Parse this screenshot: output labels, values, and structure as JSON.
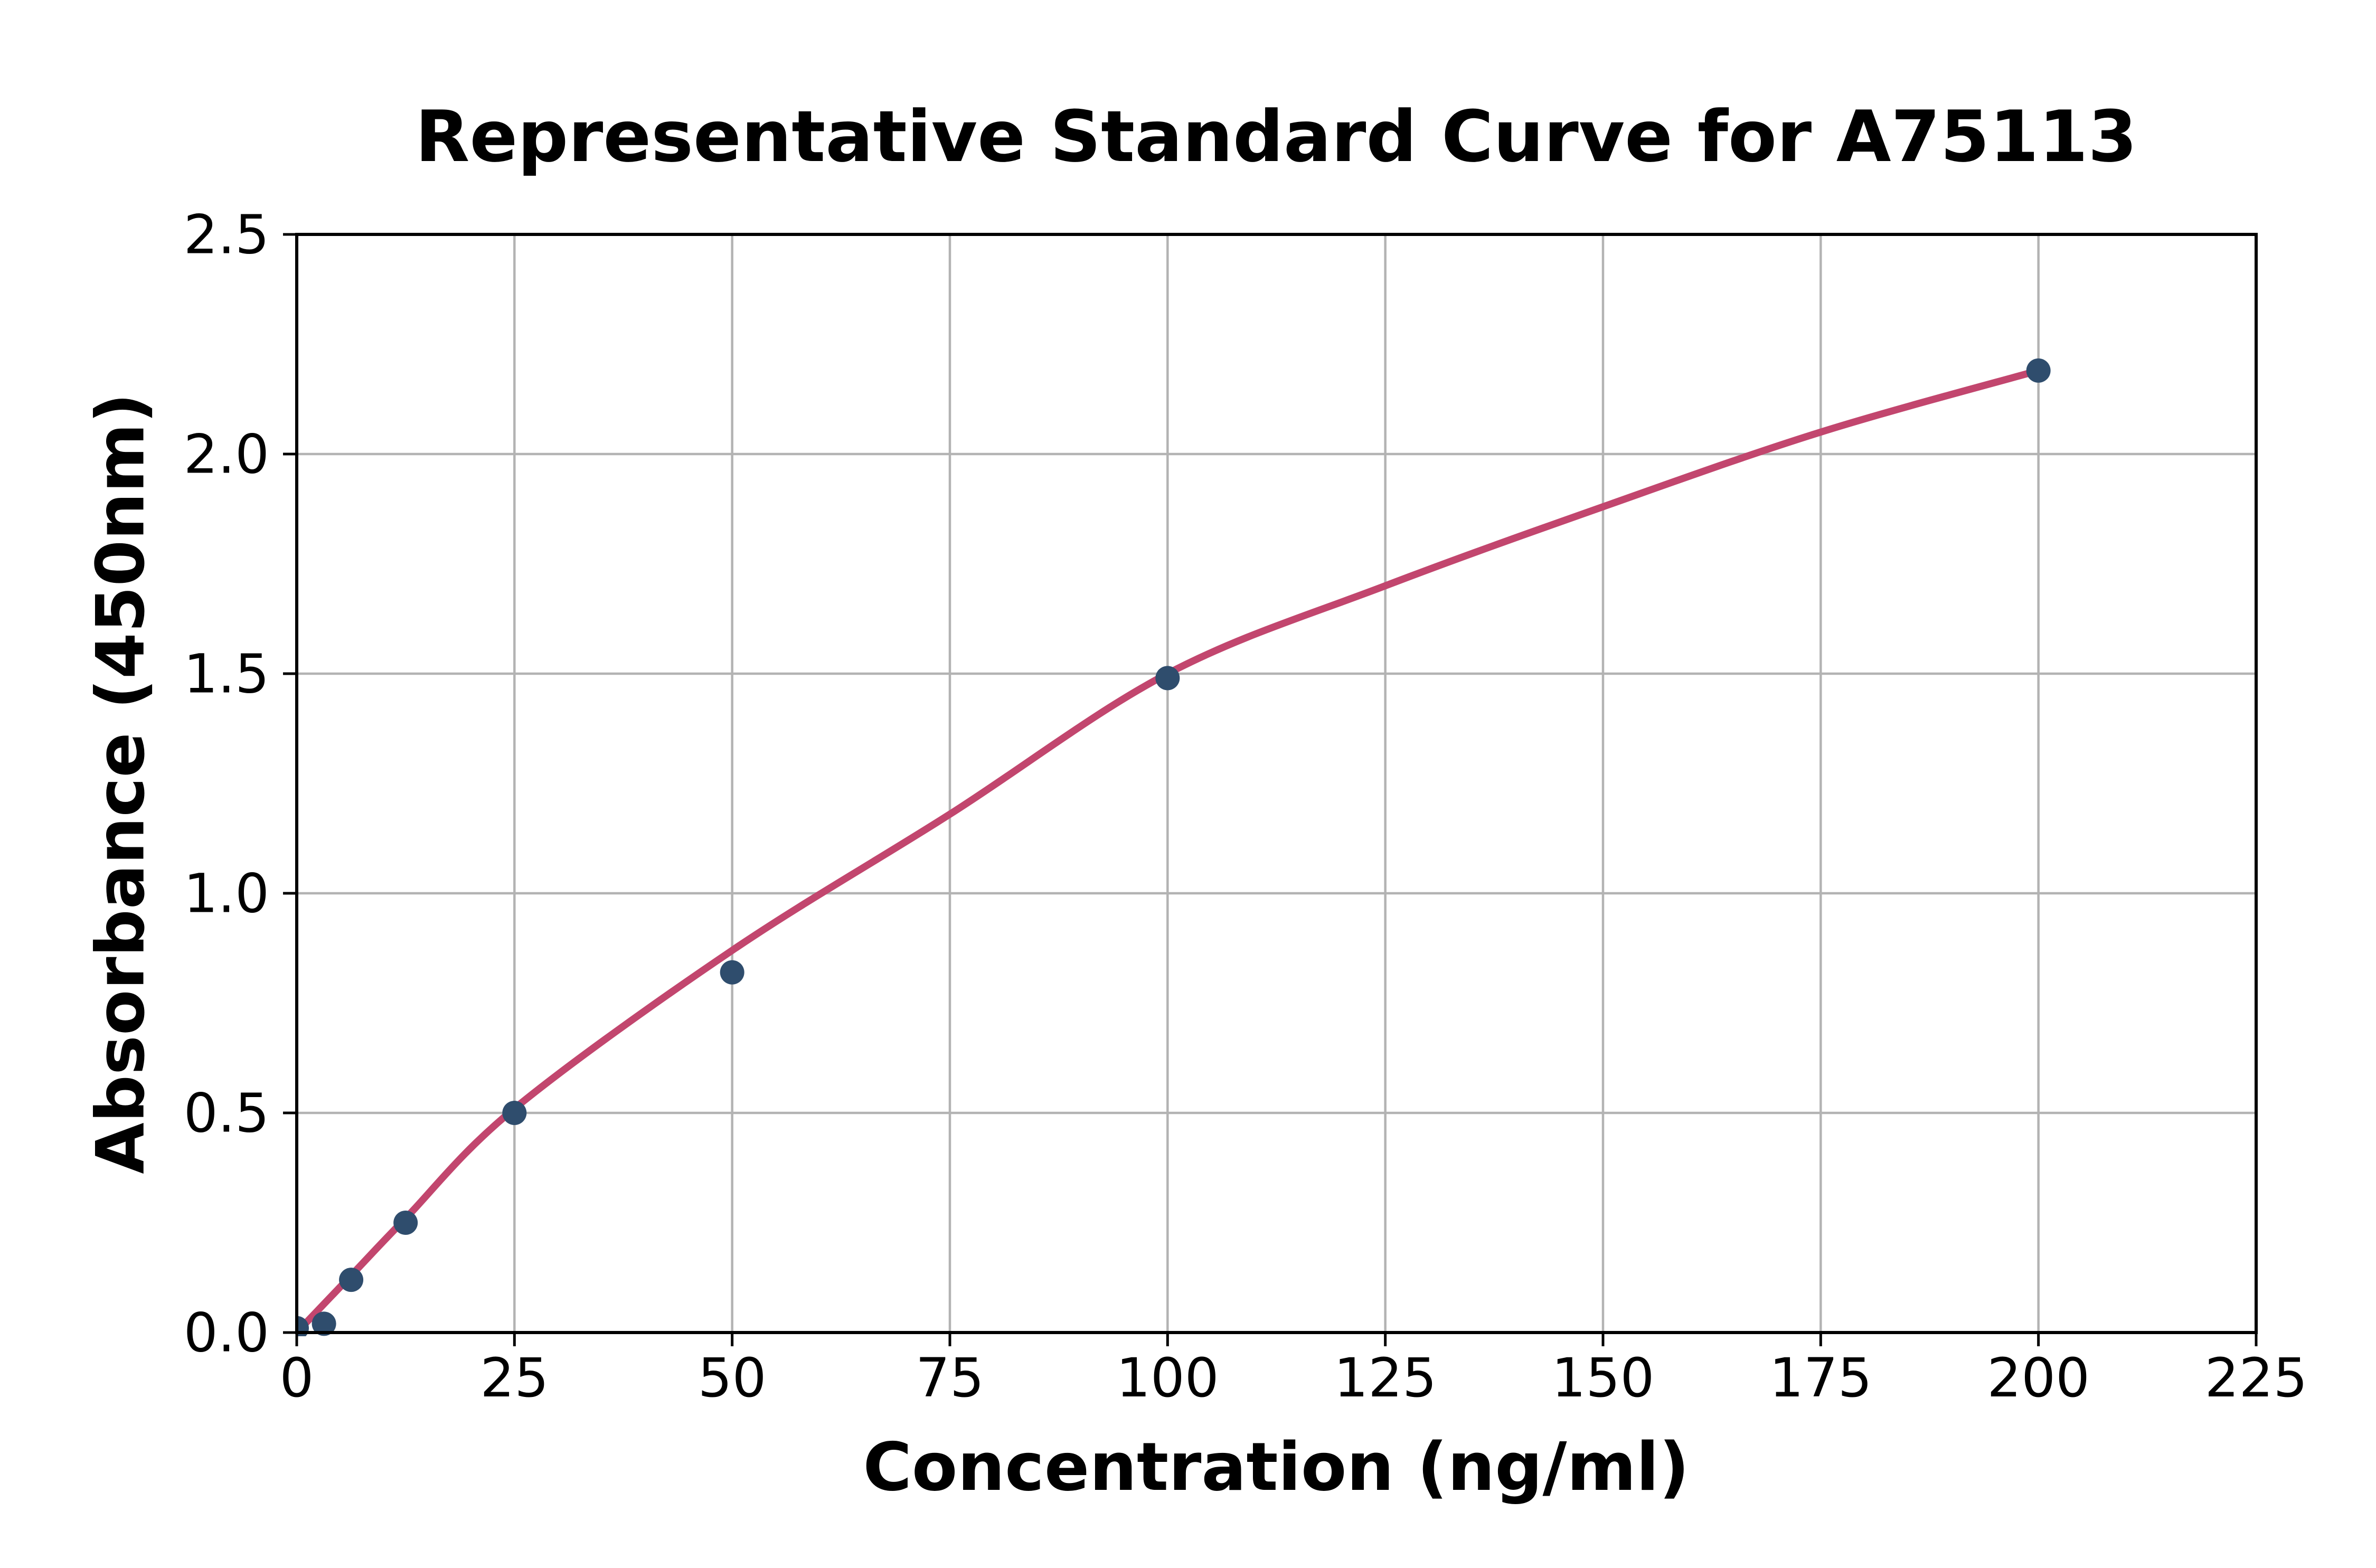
{
  "figure": {
    "title": "Representative Standard Curve for A75113"
  },
  "chart_data": {
    "type": "scatter",
    "title": "Representative Standard Curve for A75113",
    "xlabel": "Concentration (ng/ml)",
    "ylabel": "Absorbance (450nm)",
    "xlim": [
      0,
      225
    ],
    "ylim": [
      0,
      2.5
    ],
    "x_ticks": [
      "0",
      "25",
      "50",
      "75",
      "100",
      "125",
      "150",
      "175",
      "200",
      "225"
    ],
    "x_tick_values": [
      0,
      25,
      50,
      75,
      100,
      125,
      150,
      175,
      200,
      225
    ],
    "y_ticks": [
      "0.0",
      "0.5",
      "1.0",
      "1.5",
      "2.0",
      "2.5"
    ],
    "y_tick_values": [
      0,
      0.5,
      1.0,
      1.5,
      2.0,
      2.5
    ],
    "grid": true,
    "legend": null,
    "series": [
      {
        "name": "standard-points",
        "type": "scatter",
        "color": "#2f4d6d",
        "points": [
          [
            0,
            0.01
          ],
          [
            3.13,
            0.02
          ],
          [
            6.25,
            0.12
          ],
          [
            12.5,
            0.25
          ],
          [
            25,
            0.5
          ],
          [
            50,
            0.82
          ],
          [
            100,
            1.49
          ],
          [
            200,
            2.19
          ]
        ]
      },
      {
        "name": "fitted-curve",
        "type": "line",
        "color": "#c2466e",
        "points": [
          [
            0,
            0.0
          ],
          [
            6.25,
            0.13
          ],
          [
            12.5,
            0.26
          ],
          [
            25,
            0.51
          ],
          [
            50,
            0.87
          ],
          [
            75,
            1.18
          ],
          [
            100,
            1.5
          ],
          [
            125,
            1.7
          ],
          [
            150,
            1.88
          ],
          [
            175,
            2.05
          ],
          [
            200,
            2.19
          ]
        ]
      }
    ],
    "colors": {
      "grid": "#b3b3b3",
      "axis": "#000000",
      "text": "#000000",
      "background": "#ffffff",
      "point": "#2f4d6d",
      "curve": "#c2466e"
    }
  }
}
